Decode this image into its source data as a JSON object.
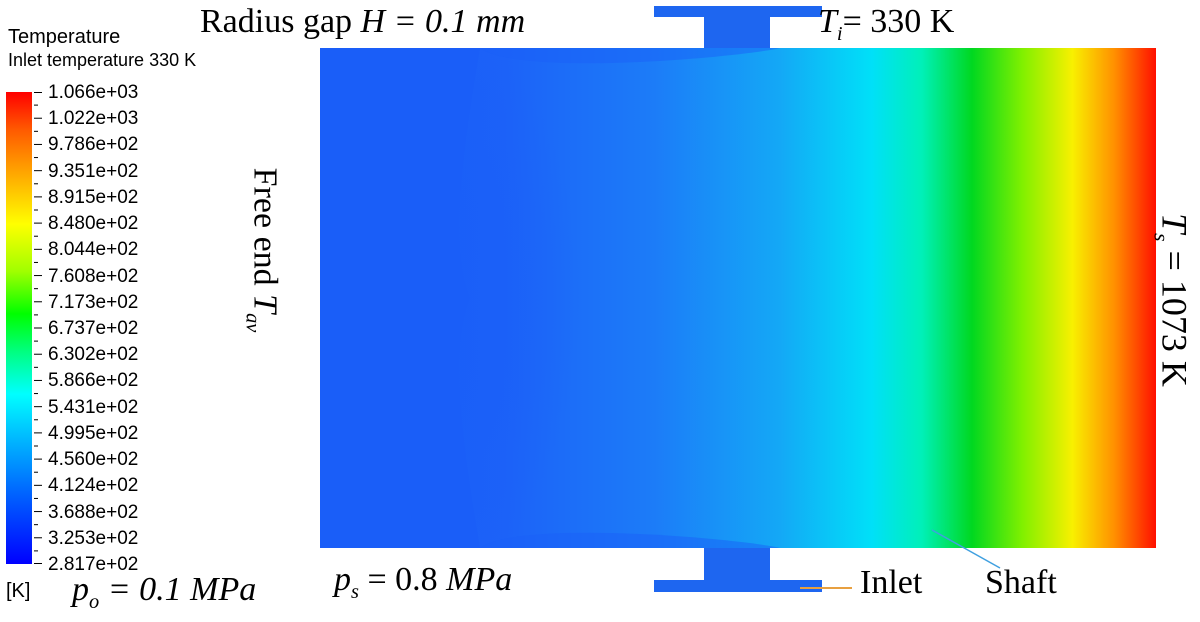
{
  "legend": {
    "title": "Temperature",
    "subtitle": "Inlet temperature 330 K",
    "unit": "[K]",
    "ticks": [
      "1.066e+03",
      "1.022e+03",
      "9.786e+02",
      "9.351e+02",
      "8.915e+02",
      "8.480e+02",
      "8.044e+02",
      "7.608e+02",
      "7.173e+02",
      "6.737e+02",
      "6.302e+02",
      "5.866e+02",
      "5.431e+02",
      "4.995e+02",
      "4.560e+02",
      "4.124e+02",
      "3.688e+02",
      "3.253e+02",
      "2.817e+02"
    ]
  },
  "labels": {
    "radius_gap_prefix": "Radius gap ",
    "radius_gap_var": "H",
    "radius_gap_value": " = 0.1 mm",
    "ti_var": "T",
    "ti_sub": "i",
    "ti_value": "= 330 K",
    "free_end_text": "Free end ",
    "free_end_var": "T",
    "free_end_sub": "av",
    "ts_var": "T",
    "ts_sub": "s",
    "ts_value": " = 1073 K",
    "po_var": "p",
    "po_sub": "o",
    "po_value": " = 0.1 MPa",
    "ps_var": "p",
    "ps_sub": "s",
    "ps_value": " = 0.8 ",
    "ps_unit": "MPa",
    "inlet": "Inlet",
    "shaft": "Shaft"
  },
  "colors": {
    "tee": "#1e66f0",
    "leader_inlet": "#e8a040",
    "leader_shaft": "#40a0e0"
  }
}
